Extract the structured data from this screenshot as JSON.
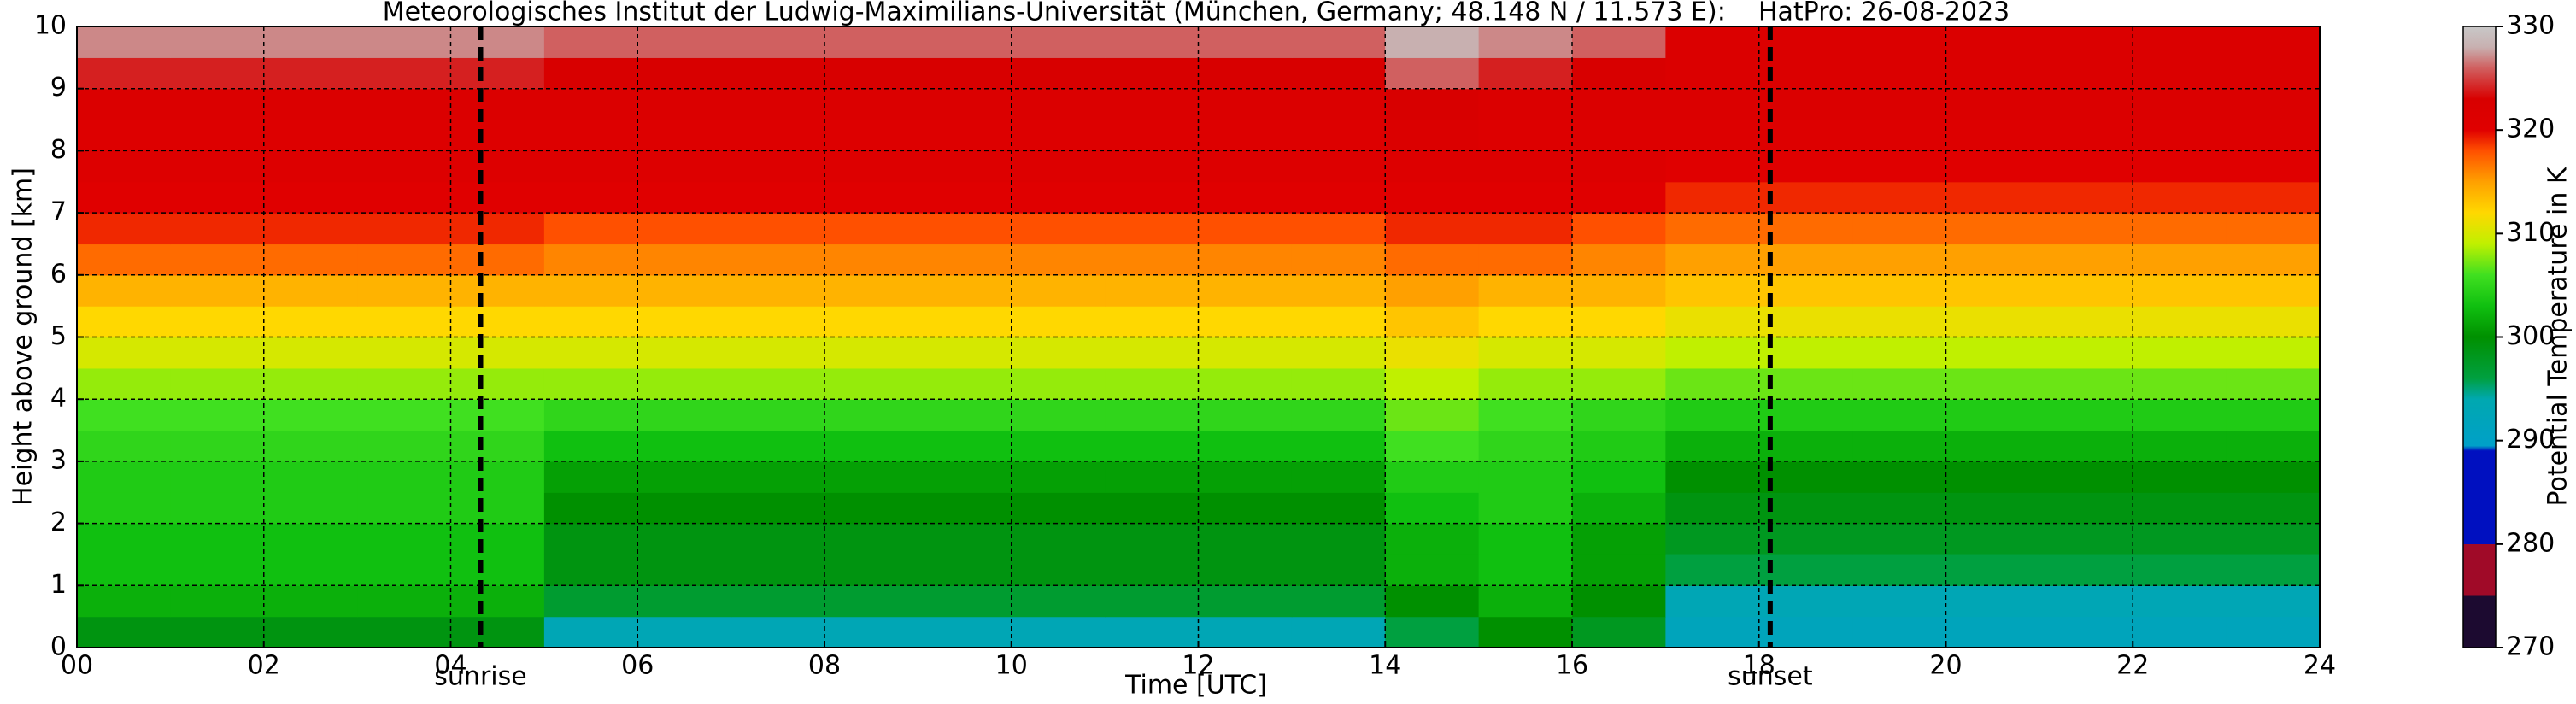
{
  "chart_data": {
    "type": "heatmap",
    "title": "Meteorologisches Institut der Ludwig-Maximilians-Universität (München, Germany; 48.148 N / 11.573 E):    HatPro: 26-08-2023",
    "xlabel": "Time [UTC]",
    "ylabel": "Height above ground [km]",
    "colorbar_label": "Potential Temperature in K",
    "xlim": [
      0,
      24
    ],
    "xticks": [
      {
        "value": 0,
        "label": "00"
      },
      {
        "value": 2,
        "label": "02"
      },
      {
        "value": 4,
        "label": "04"
      },
      {
        "value": 6,
        "label": "06"
      },
      {
        "value": 8,
        "label": "08"
      },
      10,
      12,
      14,
      16,
      18,
      20,
      22,
      24
    ],
    "ylim": [
      0,
      10
    ],
    "yticks": [
      0,
      1,
      2,
      3,
      4,
      5,
      6,
      7,
      8,
      9,
      10
    ],
    "clim": [
      270,
      330
    ],
    "cticks": [
      270,
      280,
      290,
      300,
      310,
      320,
      330
    ],
    "grid": true,
    "annotations": [
      {
        "label": "sunrise",
        "x": 4.32
      },
      {
        "label": "sunset",
        "x": 18.12
      }
    ],
    "colorscale": [
      [
        270,
        "#1c0a30"
      ],
      [
        275,
        "#1c0a30"
      ],
      [
        275,
        "#a00a28"
      ],
      [
        280,
        "#a00a28"
      ],
      [
        280,
        "#0010c0"
      ],
      [
        289,
        "#0010c0"
      ],
      [
        289.5,
        "#00a0c8"
      ],
      [
        294,
        "#00a8b0"
      ],
      [
        296,
        "#00a040"
      ],
      [
        300,
        "#009000"
      ],
      [
        303,
        "#10c010"
      ],
      [
        306,
        "#40e020"
      ],
      [
        309,
        "#c0f000"
      ],
      [
        312,
        "#ffd800"
      ],
      [
        315,
        "#ffa000"
      ],
      [
        318,
        "#ff5000"
      ],
      [
        320,
        "#e00000"
      ],
      [
        323,
        "#d80000"
      ],
      [
        326,
        "#d06060"
      ],
      [
        328,
        "#c8b0b0"
      ],
      [
        330,
        "#c8c8c8"
      ]
    ],
    "times": [
      0.5,
      1.5,
      2.5,
      3.5,
      4.5,
      5.5,
      6.5,
      7.5,
      8.5,
      9.5,
      10.5,
      11.5,
      12.5,
      13.5,
      14.5,
      15.5,
      16.5,
      17.5,
      18.5,
      19.5,
      20.5,
      21.5,
      22.5,
      23.5
    ],
    "heights": [
      0.25,
      0.75,
      1.25,
      1.75,
      2.25,
      2.75,
      3.25,
      3.75,
      4.25,
      4.75,
      5.25,
      5.75,
      6.25,
      6.75,
      7.25,
      7.75,
      8.25,
      8.75,
      9.25,
      9.75
    ],
    "z": [
      [
        299,
        299,
        299,
        299,
        299,
        293,
        293,
        293,
        293,
        293,
        293,
        293,
        293,
        293,
        296,
        300,
        298,
        292,
        292,
        292,
        292,
        292,
        292,
        292
      ],
      [
        302,
        302,
        302,
        302,
        302,
        297,
        297,
        297,
        297,
        297,
        297,
        297,
        297,
        297,
        300,
        302,
        300,
        293,
        293,
        293,
        293,
        293,
        293,
        293
      ],
      [
        303,
        303,
        303,
        303,
        303,
        299,
        299,
        299,
        299,
        299,
        299,
        299,
        299,
        299,
        302,
        303,
        301,
        296,
        296,
        296,
        296,
        296,
        296,
        296
      ],
      [
        303,
        303,
        303,
        303,
        303,
        299,
        299,
        299,
        299,
        299,
        299,
        299,
        299,
        299,
        302,
        303,
        301,
        298,
        298,
        298,
        298,
        298,
        298,
        298
      ],
      [
        304,
        304,
        304,
        304,
        304,
        300,
        300,
        300,
        300,
        300,
        300,
        300,
        300,
        300,
        303,
        304,
        302,
        299,
        299,
        299,
        299,
        299,
        299,
        299
      ],
      [
        304,
        304,
        304,
        304,
        304,
        301,
        301,
        301,
        301,
        301,
        301,
        301,
        301,
        301,
        304,
        304,
        303,
        300,
        300,
        300,
        300,
        300,
        300,
        300
      ],
      [
        305,
        305,
        305,
        305,
        305,
        303,
        303,
        303,
        303,
        303,
        303,
        303,
        303,
        303,
        306,
        305,
        304,
        302,
        302,
        302,
        302,
        302,
        302,
        302
      ],
      [
        306,
        306,
        306,
        306,
        306,
        305,
        305,
        305,
        305,
        305,
        305,
        305,
        305,
        305,
        307,
        306,
        305,
        304,
        304,
        304,
        304,
        304,
        304,
        304
      ],
      [
        308,
        308,
        308,
        308,
        308,
        308,
        308,
        308,
        308,
        308,
        308,
        308,
        308,
        308,
        309,
        308,
        308,
        307,
        307,
        307,
        307,
        307,
        307,
        307
      ],
      [
        310,
        310,
        310,
        310,
        310,
        310,
        310,
        310,
        310,
        310,
        310,
        310,
        310,
        310,
        311,
        310,
        310,
        309,
        309,
        309,
        309,
        309,
        309,
        309
      ],
      [
        312,
        312,
        312,
        312,
        312,
        312,
        312,
        312,
        312,
        312,
        312,
        312,
        312,
        312,
        313,
        312,
        312,
        311,
        311,
        311,
        311,
        311,
        311,
        311
      ],
      [
        314,
        314,
        314,
        314,
        314,
        314,
        314,
        314,
        314,
        314,
        314,
        314,
        314,
        314,
        315,
        314,
        314,
        313,
        313,
        313,
        313,
        313,
        313,
        313
      ],
      [
        317,
        317,
        317,
        317,
        317,
        316,
        316,
        316,
        316,
        316,
        316,
        316,
        316,
        316,
        317,
        317,
        316,
        315,
        315,
        315,
        315,
        315,
        315,
        315
      ],
      [
        319,
        319,
        319,
        319,
        319,
        318,
        318,
        318,
        318,
        318,
        318,
        318,
        318,
        318,
        319,
        319,
        318,
        317,
        317,
        317,
        317,
        317,
        317,
        317
      ],
      [
        320,
        320,
        320,
        320,
        320,
        320,
        320,
        320,
        320,
        320,
        320,
        320,
        320,
        320,
        320,
        320,
        320,
        319,
        319,
        319,
        319,
        319,
        319,
        319
      ],
      [
        321,
        321,
        321,
        321,
        321,
        321,
        321,
        321,
        321,
        321,
        321,
        321,
        321,
        321,
        321,
        321,
        321,
        320,
        320,
        320,
        320,
        320,
        320,
        320
      ],
      [
        321,
        321,
        321,
        321,
        321,
        321,
        321,
        321,
        321,
        321,
        321,
        321,
        321,
        321,
        322,
        321,
        321,
        321,
        321,
        321,
        321,
        321,
        321,
        321
      ],
      [
        322,
        322,
        322,
        322,
        322,
        322,
        322,
        322,
        322,
        322,
        322,
        322,
        322,
        322,
        323,
        322,
        322,
        322,
        322,
        322,
        322,
        322,
        322,
        322
      ],
      [
        324,
        324,
        324,
        324,
        324,
        323,
        323,
        323,
        323,
        323,
        323,
        323,
        323,
        323,
        326,
        324,
        323,
        322,
        322,
        322,
        322,
        322,
        322,
        322
      ],
      [
        327,
        327,
        327,
        327,
        327,
        326,
        326,
        326,
        326,
        326,
        326,
        326,
        326,
        326,
        328,
        327,
        326,
        322,
        322,
        322,
        322,
        322,
        322,
        322
      ]
    ]
  }
}
